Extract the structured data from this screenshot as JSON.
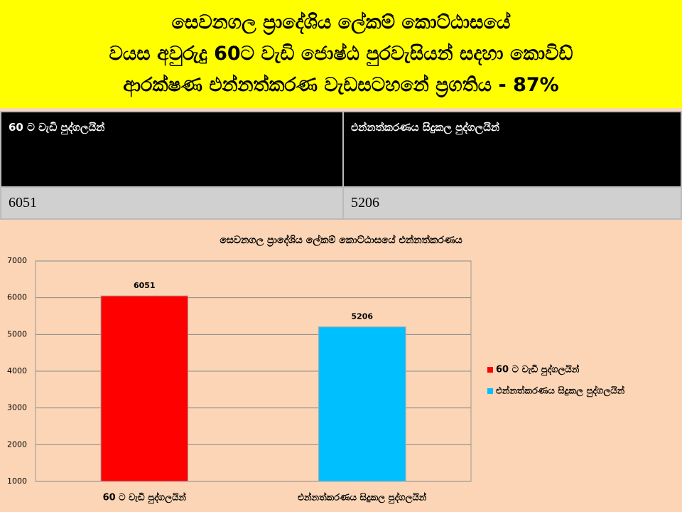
{
  "header": {
    "title_lines": [
      "සෙවනගල ප්‍රාදේශිය ලේකම් කොට්ඨාසයේ",
      "වයස අවුරුදු 60ට වැඩි ජොෂ්ඨ පුරවැසියන් සදහා කොවිඩ්",
      "ආරක්ෂණ එන්නත්කරණ වැඩසටහනේ  ප්‍රගතිය - 87%"
    ]
  },
  "table": {
    "header": [
      "60 ට වැඩි පුද්ගලයින්",
      "එන්නත්කරණය සිදුකල පුද්ගලයින්"
    ],
    "rows": [
      [
        "6051",
        "5206"
      ]
    ]
  },
  "chart_data": {
    "type": "bar",
    "title": "සෙවනගල ප්‍රාදේශිය ලේකම්  කොට්ඨාසයේ එන්නත්කරණය",
    "categories": [
      "60 ට වැඩි පුද්ගලයින්",
      "එන්නත්කරණය සිදුකල පුද්ගලයින්"
    ],
    "values": [
      6051,
      5206
    ],
    "colors": [
      "#ff0000",
      "#00bfff"
    ],
    "ylim": [
      1000,
      7000
    ],
    "yticks": [
      1000,
      2000,
      3000,
      4000,
      5000,
      6000,
      7000
    ],
    "grid": true
  }
}
